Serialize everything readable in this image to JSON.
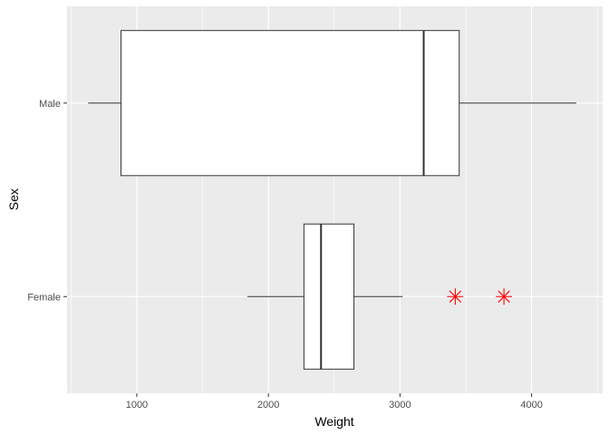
{
  "chart_data": {
    "type": "boxplot",
    "orientation": "horizontal",
    "xlabel": "Weight",
    "ylabel": "Sex",
    "xlim": [
      470,
      4540
    ],
    "x_ticks": [
      1000,
      2000,
      3000,
      4000
    ],
    "x_tick_labels": [
      "1000",
      "2000",
      "3000",
      "4000"
    ],
    "categories": [
      "Male",
      "Female"
    ],
    "boxes": [
      {
        "category": "Male",
        "whisker_low": 630,
        "q1": 880,
        "median": 3180,
        "q3": 3450,
        "whisker_high": 4340,
        "outliers": []
      },
      {
        "category": "Female",
        "whisker_low": 1840,
        "q1": 2270,
        "median": 2400,
        "q3": 2650,
        "whisker_high": 3020,
        "outliers": [
          3420,
          3790
        ]
      }
    ],
    "outlier_color": "#ff0000",
    "outlier_shape": "asterisk",
    "panel_background": "#ebebeb",
    "grid": true,
    "legend": "none"
  }
}
